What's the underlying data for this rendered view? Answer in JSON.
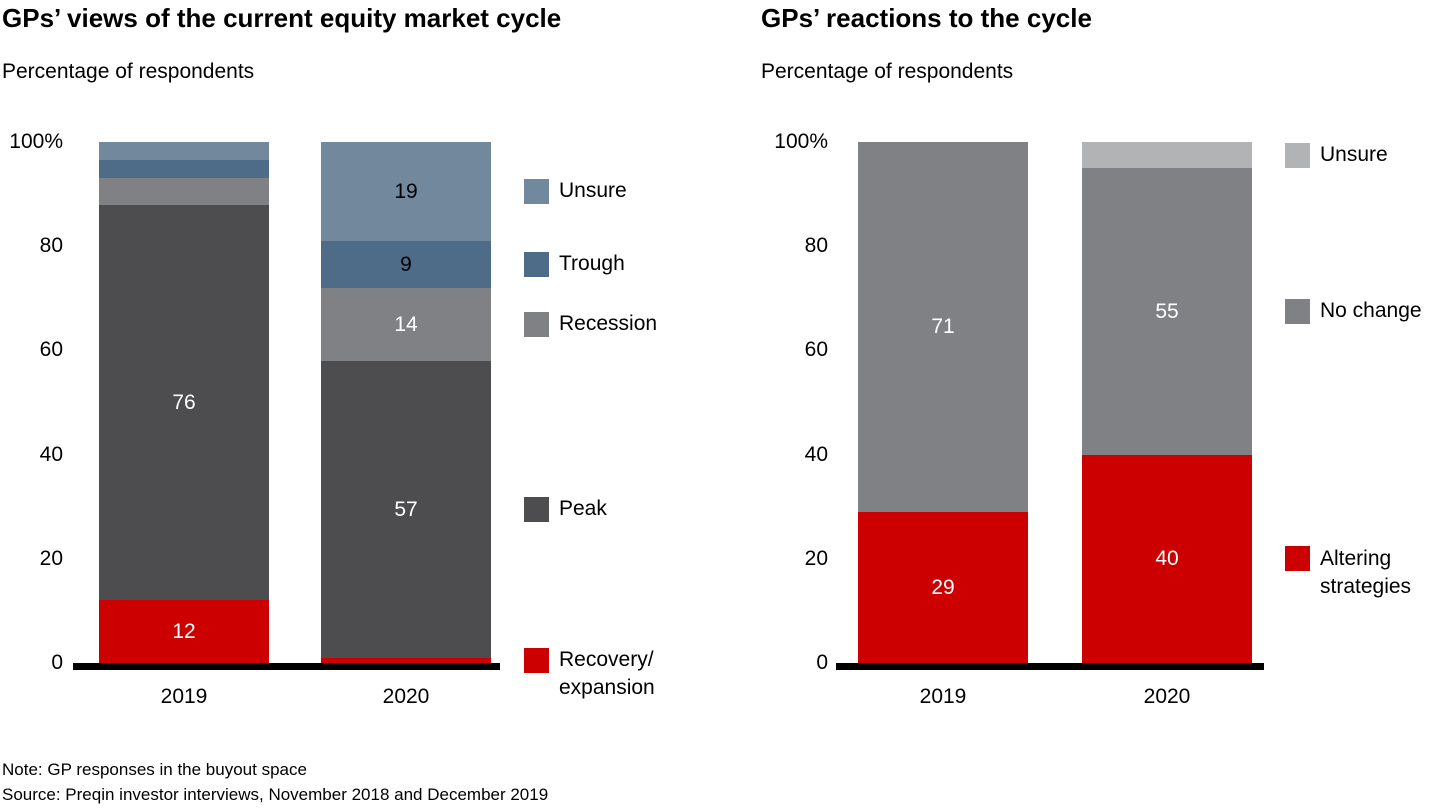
{
  "chart_data": [
    {
      "type": "bar",
      "subtype": "stacked-vertical",
      "title": "GPs’ views of the current equity market cycle",
      "subtitle": "Percentage of respondents",
      "categories": [
        "2019",
        "2020"
      ],
      "unit": "percent",
      "ylim": [
        0,
        100
      ],
      "grid": false,
      "legend_position": "right-aligned-to-last-bar-segments",
      "y_ticks": [
        {
          "label": "100%",
          "value": 100
        },
        {
          "label": "80",
          "value": 80
        },
        {
          "label": "60",
          "value": 60
        },
        {
          "label": "40",
          "value": 40
        },
        {
          "label": "20",
          "value": 20
        },
        {
          "label": "0",
          "value": 0
        }
      ],
      "series": [
        {
          "name": "Recovery/expansion",
          "legend_lines": [
            "Recovery/",
            "expansion"
          ],
          "color": "#CC0000",
          "label_color": "#FFFFFF",
          "values": [
            12,
            1
          ],
          "labels": [
            "12",
            ""
          ]
        },
        {
          "name": "Peak",
          "legend_lines": [
            "Peak"
          ],
          "color": "#4D4D4F",
          "label_color": "#FFFFFF",
          "values": [
            76,
            57
          ],
          "labels": [
            "76",
            "57"
          ]
        },
        {
          "name": "Recession",
          "legend_lines": [
            "Recession"
          ],
          "color": "#808184",
          "label_color": "#FFFFFF",
          "values": [
            5,
            14
          ],
          "labels": [
            "",
            "14"
          ]
        },
        {
          "name": "Trough",
          "legend_lines": [
            "Trough"
          ],
          "color": "#4E6C88",
          "label_color": "#000000",
          "values": [
            3.5,
            9
          ],
          "labels": [
            "",
            "9"
          ]
        },
        {
          "name": "Unsure",
          "legend_lines": [
            "Unsure"
          ],
          "color": "#72889D",
          "label_color": "#000000",
          "values": [
            3.5,
            19
          ],
          "labels": [
            "",
            "19"
          ]
        }
      ]
    },
    {
      "type": "bar",
      "subtype": "stacked-vertical",
      "title": "GPs’ reactions to the cycle",
      "subtitle": "Percentage of respondents",
      "categories": [
        "2019",
        "2020"
      ],
      "unit": "percent",
      "ylim": [
        0,
        100
      ],
      "grid": false,
      "legend_position": "right-aligned-to-last-bar-segments",
      "y_ticks": [
        {
          "label": "100%",
          "value": 100
        },
        {
          "label": "80",
          "value": 80
        },
        {
          "label": "60",
          "value": 60
        },
        {
          "label": "40",
          "value": 40
        },
        {
          "label": "20",
          "value": 20
        },
        {
          "label": "0",
          "value": 0
        }
      ],
      "series": [
        {
          "name": "Altering strategies",
          "legend_lines": [
            "Altering",
            "strategies"
          ],
          "color": "#CC0000",
          "label_color": "#FFFFFF",
          "values": [
            29,
            40
          ],
          "labels": [
            "29",
            "40"
          ]
        },
        {
          "name": "No change",
          "legend_lines": [
            "No change"
          ],
          "color": "#808184",
          "label_color": "#FFFFFF",
          "values": [
            71,
            55
          ],
          "labels": [
            "71",
            "55"
          ]
        },
        {
          "name": "Unsure",
          "legend_lines": [
            "Unsure"
          ],
          "color": "#B1B3B5",
          "label_color": "#000000",
          "values": [
            0,
            5
          ],
          "labels": [
            "",
            ""
          ]
        }
      ]
    }
  ],
  "footer": {
    "note": "Note: GP responses in the buyout space",
    "source": "Source: Preqin investor interviews, November 2018 and December 2019"
  },
  "colors": {
    "red": "#CC0000",
    "dark_gray": "#4D4D4F",
    "mid_gray": "#808184",
    "steel_blue": "#4E6C88",
    "blue_gray": "#72889D",
    "light_gray": "#B1B3B5",
    "axis": "#000000"
  }
}
